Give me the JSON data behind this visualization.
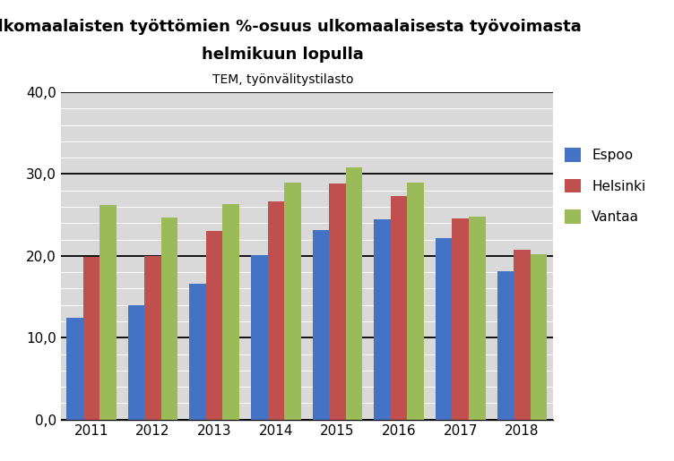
{
  "title_line1": "Ulkomaalaisten työttömien %-osuus ulkomaalaisesta työvoimasta",
  "title_line2": "helmikuun lopulla",
  "subtitle": "TEM, työnvälitystilasto",
  "years": [
    2011,
    2012,
    2013,
    2014,
    2015,
    2016,
    2017,
    2018
  ],
  "espoo": [
    12.4,
    14.0,
    16.6,
    20.1,
    23.2,
    24.5,
    22.2,
    18.1
  ],
  "helsinki": [
    19.9,
    20.0,
    23.0,
    26.6,
    28.8,
    27.3,
    24.6,
    20.7
  ],
  "vantaa": [
    26.2,
    24.7,
    26.3,
    28.9,
    30.8,
    29.0,
    24.8,
    20.2
  ],
  "color_espoo": "#4472c4",
  "color_helsinki": "#c0504d",
  "color_vantaa": "#9bbb59",
  "plot_bg_color": "#d9d9d9",
  "ylim": [
    0,
    40
  ],
  "yticks_major": [
    0.0,
    10.0,
    20.0,
    30.0,
    40.0
  ],
  "yticks_minor_step": 2.0,
  "legend_labels": [
    "Espoo",
    "Helsinki",
    "Vantaa"
  ],
  "bar_width": 0.27,
  "title_fontsize": 13,
  "subtitle_fontsize": 10,
  "tick_fontsize": 11,
  "legend_fontsize": 11
}
